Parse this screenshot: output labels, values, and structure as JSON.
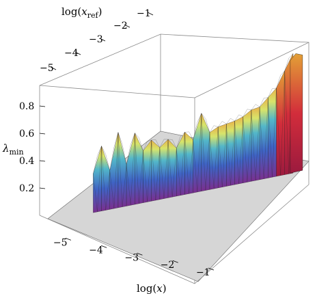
{
  "chart_data": {
    "type": "surface3d",
    "xlabel": "log(x)",
    "ylabel": "log(x_ref)",
    "zlabel": "λ_min",
    "x_range": [
      -5.4,
      -0.1
    ],
    "y_range": [
      -5.4,
      -0.9
    ],
    "z_range": [
      0.0,
      0.95
    ],
    "x_ticks": [
      "−5",
      "−4",
      "−3",
      "−2",
      "−1"
    ],
    "y_ticks": [
      "−5",
      "−4",
      "−3",
      "−2",
      "−1"
    ],
    "z_ticks": [
      "0.2",
      "0.4",
      "0.6",
      "0.8"
    ],
    "x": [
      -5.0,
      -4.8,
      -4.6,
      -4.4,
      -4.2,
      -4.0,
      -3.8,
      -3.6,
      -3.4,
      -3.2,
      -3.0,
      -2.8,
      -2.6,
      -2.4,
      -2.2,
      -2.0,
      -1.8,
      -1.6,
      -1.4,
      -1.2,
      -1.0,
      -0.8,
      -0.6,
      -0.4,
      -0.2
    ],
    "series": [
      {
        "values": [
          0.3,
          0.5,
          0.3,
          0.58,
          0.32,
          0.55,
          0.4,
          0.47,
          0.4,
          0.45,
          0.37,
          0.48,
          0.41,
          0.6,
          0.44,
          0.47,
          0.48,
          0.49,
          0.51,
          0.55,
          0.56,
          0.62,
          0.68,
          0.8,
          0.92
        ]
      }
    ],
    "floor_color": "#d6d6d6",
    "colormap": "rainbow"
  },
  "axes": {
    "x_title_main": "log(",
    "x_title_var": "x",
    "x_title_close": ")",
    "y_title_main": "log(",
    "y_title_var": "x",
    "y_title_sub": "ref",
    "y_title_close": ")",
    "z_title_var": "λ",
    "z_title_sub": "min"
  }
}
